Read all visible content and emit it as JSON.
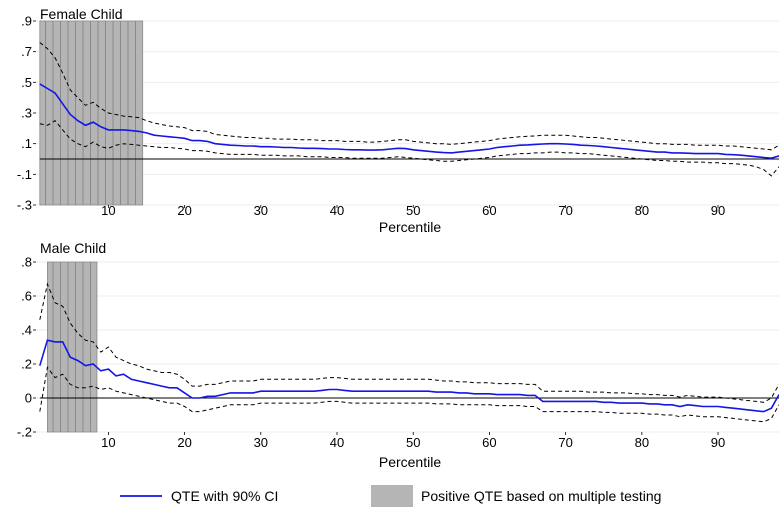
{
  "colors": {
    "qte_line": "#1515e6",
    "ci_line": "#000000",
    "shade_fill": "#b5b5b5",
    "shade_lines": "#888888",
    "grid": "#eeeeee",
    "zero_line": "#000000"
  },
  "legend": {
    "qte_label": "QTE with 90% CI",
    "shade_label": "Positive QTE based on multiple testing"
  },
  "chart_data": [
    {
      "type": "line",
      "title": "Female Child",
      "xlabel": "Percentile",
      "ylabel": "",
      "xlim": [
        0.5,
        98
      ],
      "ylim": [
        -0.3,
        0.9
      ],
      "y_ticks": [
        -0.3,
        -0.1,
        0.1,
        0.3,
        0.5,
        0.7,
        0.9
      ],
      "y_tick_labels": [
        "-.3",
        "-.1",
        ".1",
        ".3",
        ".5",
        ".7",
        ".9"
      ],
      "x_ticks": [
        10,
        20,
        30,
        40,
        50,
        60,
        70,
        80,
        90
      ],
      "x_tick_labels": [
        "10",
        "20",
        "30",
        "40",
        "50",
        "60",
        "70",
        "80",
        "90"
      ],
      "zero_line": 0,
      "shaded_region": [
        1,
        14.5
      ],
      "x": [
        1,
        2,
        3,
        4,
        5,
        6,
        7,
        8,
        9,
        10,
        11,
        12,
        13,
        14,
        15,
        16,
        17,
        18,
        19,
        20,
        21,
        22,
        23,
        24,
        25,
        26,
        27,
        28,
        29,
        30,
        31,
        32,
        33,
        34,
        35,
        36,
        37,
        38,
        39,
        40,
        41,
        42,
        43,
        44,
        45,
        46,
        47,
        48,
        49,
        50,
        51,
        52,
        53,
        54,
        55,
        56,
        57,
        58,
        59,
        60,
        61,
        62,
        63,
        64,
        65,
        66,
        67,
        68,
        69,
        70,
        71,
        72,
        73,
        74,
        75,
        76,
        77,
        78,
        79,
        80,
        81,
        82,
        83,
        84,
        85,
        86,
        87,
        88,
        89,
        90,
        91,
        92,
        93,
        94,
        95,
        96,
        97,
        98
      ],
      "series": [
        {
          "role": "estimate",
          "values": [
            0.49,
            0.46,
            0.43,
            0.36,
            0.29,
            0.25,
            0.22,
            0.24,
            0.21,
            0.19,
            0.19,
            0.19,
            0.185,
            0.18,
            0.17,
            0.155,
            0.15,
            0.145,
            0.14,
            0.135,
            0.12,
            0.12,
            0.115,
            0.1,
            0.095,
            0.09,
            0.088,
            0.085,
            0.085,
            0.08,
            0.08,
            0.078,
            0.075,
            0.075,
            0.072,
            0.07,
            0.07,
            0.068,
            0.065,
            0.065,
            0.062,
            0.06,
            0.06,
            0.058,
            0.058,
            0.06,
            0.065,
            0.07,
            0.068,
            0.06,
            0.055,
            0.05,
            0.045,
            0.042,
            0.04,
            0.045,
            0.05,
            0.055,
            0.06,
            0.065,
            0.075,
            0.08,
            0.085,
            0.09,
            0.092,
            0.095,
            0.098,
            0.1,
            0.1,
            0.098,
            0.095,
            0.09,
            0.088,
            0.085,
            0.08,
            0.075,
            0.07,
            0.065,
            0.06,
            0.055,
            0.05,
            0.045,
            0.045,
            0.04,
            0.04,
            0.038,
            0.035,
            0.035,
            0.035,
            0.035,
            0.03,
            0.028,
            0.025,
            0.02,
            0.015,
            0.01,
            0.005,
            0.02
          ]
        },
        {
          "role": "ci_upper",
          "values": [
            0.76,
            0.72,
            0.66,
            0.56,
            0.45,
            0.4,
            0.35,
            0.37,
            0.33,
            0.3,
            0.29,
            0.28,
            0.275,
            0.27,
            0.25,
            0.235,
            0.225,
            0.215,
            0.21,
            0.205,
            0.185,
            0.185,
            0.18,
            0.16,
            0.155,
            0.15,
            0.145,
            0.14,
            0.14,
            0.135,
            0.135,
            0.13,
            0.13,
            0.13,
            0.125,
            0.125,
            0.125,
            0.12,
            0.12,
            0.12,
            0.115,
            0.115,
            0.115,
            0.11,
            0.11,
            0.115,
            0.12,
            0.125,
            0.125,
            0.115,
            0.11,
            0.105,
            0.1,
            0.1,
            0.095,
            0.1,
            0.105,
            0.11,
            0.115,
            0.12,
            0.13,
            0.135,
            0.14,
            0.145,
            0.148,
            0.15,
            0.155,
            0.155,
            0.155,
            0.155,
            0.15,
            0.145,
            0.14,
            0.14,
            0.135,
            0.13,
            0.125,
            0.12,
            0.115,
            0.11,
            0.105,
            0.1,
            0.1,
            0.095,
            0.095,
            0.095,
            0.09,
            0.09,
            0.09,
            0.09,
            0.085,
            0.085,
            0.08,
            0.075,
            0.07,
            0.065,
            0.06,
            0.09
          ]
        },
        {
          "role": "ci_lower",
          "values": [
            0.23,
            0.22,
            0.25,
            0.19,
            0.13,
            0.1,
            0.08,
            0.11,
            0.08,
            0.07,
            0.09,
            0.1,
            0.095,
            0.09,
            0.085,
            0.08,
            0.075,
            0.075,
            0.07,
            0.065,
            0.055,
            0.055,
            0.05,
            0.04,
            0.035,
            0.03,
            0.03,
            0.03,
            0.03,
            0.025,
            0.025,
            0.025,
            0.02,
            0.02,
            0.02,
            0.015,
            0.015,
            0.015,
            0.01,
            0.01,
            0.01,
            0.005,
            0.005,
            0.005,
            0.005,
            0.005,
            0.01,
            0.015,
            0.01,
            0.005,
            0.0,
            -0.005,
            -0.01,
            -0.015,
            -0.015,
            -0.01,
            -0.005,
            0.0,
            0.005,
            0.01,
            0.02,
            0.025,
            0.03,
            0.035,
            0.035,
            0.04,
            0.04,
            0.045,
            0.045,
            0.04,
            0.04,
            0.035,
            0.035,
            0.03,
            0.025,
            0.02,
            0.015,
            0.01,
            0.005,
            0.0,
            -0.005,
            -0.01,
            -0.01,
            -0.015,
            -0.015,
            -0.02,
            -0.02,
            -0.02,
            -0.025,
            -0.025,
            -0.03,
            -0.03,
            -0.035,
            -0.04,
            -0.05,
            -0.07,
            -0.11,
            -0.05
          ]
        }
      ]
    },
    {
      "type": "line",
      "title": "Male Child",
      "xlabel": "Percentile",
      "ylabel": "",
      "xlim": [
        0.5,
        98
      ],
      "ylim": [
        -0.2,
        0.8
      ],
      "y_ticks": [
        -0.2,
        0,
        0.2,
        0.4,
        0.6,
        0.8
      ],
      "y_tick_labels": [
        "-.2",
        "0",
        ".2",
        ".4",
        ".6",
        ".8"
      ],
      "x_ticks": [
        10,
        20,
        30,
        40,
        50,
        60,
        70,
        80,
        90
      ],
      "x_tick_labels": [
        "10",
        "20",
        "30",
        "40",
        "50",
        "60",
        "70",
        "80",
        "90"
      ],
      "zero_line": 0,
      "shaded_region": [
        2,
        8.5
      ],
      "x": [
        1,
        2,
        3,
        4,
        5,
        6,
        7,
        8,
        9,
        10,
        11,
        12,
        13,
        14,
        15,
        16,
        17,
        18,
        19,
        20,
        21,
        22,
        23,
        24,
        25,
        26,
        27,
        28,
        29,
        30,
        31,
        32,
        33,
        34,
        35,
        36,
        37,
        38,
        39,
        40,
        41,
        42,
        43,
        44,
        45,
        46,
        47,
        48,
        49,
        50,
        51,
        52,
        53,
        54,
        55,
        56,
        57,
        58,
        59,
        60,
        61,
        62,
        63,
        64,
        65,
        66,
        67,
        68,
        69,
        70,
        71,
        72,
        73,
        74,
        75,
        76,
        77,
        78,
        79,
        80,
        81,
        82,
        83,
        84,
        85,
        86,
        87,
        88,
        89,
        90,
        91,
        92,
        93,
        94,
        95,
        96,
        97,
        98
      ],
      "series": [
        {
          "role": "estimate",
          "values": [
            0.19,
            0.34,
            0.33,
            0.33,
            0.24,
            0.22,
            0.19,
            0.2,
            0.16,
            0.17,
            0.13,
            0.14,
            0.11,
            0.1,
            0.09,
            0.08,
            0.07,
            0.06,
            0.06,
            0.03,
            0.0,
            0.0,
            0.01,
            0.01,
            0.02,
            0.03,
            0.03,
            0.03,
            0.03,
            0.04,
            0.04,
            0.04,
            0.04,
            0.04,
            0.04,
            0.04,
            0.04,
            0.045,
            0.05,
            0.05,
            0.045,
            0.04,
            0.04,
            0.04,
            0.04,
            0.04,
            0.04,
            0.04,
            0.04,
            0.04,
            0.04,
            0.04,
            0.035,
            0.035,
            0.035,
            0.03,
            0.03,
            0.025,
            0.025,
            0.025,
            0.02,
            0.02,
            0.02,
            0.02,
            0.015,
            0.015,
            -0.02,
            -0.02,
            -0.02,
            -0.02,
            -0.02,
            -0.02,
            -0.02,
            -0.02,
            -0.025,
            -0.025,
            -0.03,
            -0.03,
            -0.03,
            -0.03,
            -0.035,
            -0.035,
            -0.04,
            -0.04,
            -0.05,
            -0.04,
            -0.045,
            -0.05,
            -0.05,
            -0.05,
            -0.055,
            -0.06,
            -0.065,
            -0.07,
            -0.075,
            -0.08,
            -0.06,
            0.02
          ]
        },
        {
          "role": "ci_upper",
          "values": [
            0.46,
            0.67,
            0.56,
            0.54,
            0.44,
            0.38,
            0.34,
            0.33,
            0.27,
            0.3,
            0.24,
            0.22,
            0.2,
            0.19,
            0.17,
            0.16,
            0.15,
            0.15,
            0.14,
            0.11,
            0.07,
            0.07,
            0.08,
            0.08,
            0.09,
            0.1,
            0.1,
            0.1,
            0.1,
            0.11,
            0.11,
            0.11,
            0.11,
            0.11,
            0.11,
            0.11,
            0.11,
            0.115,
            0.12,
            0.12,
            0.115,
            0.11,
            0.11,
            0.11,
            0.11,
            0.11,
            0.11,
            0.11,
            0.11,
            0.11,
            0.11,
            0.11,
            0.105,
            0.1,
            0.1,
            0.095,
            0.095,
            0.09,
            0.09,
            0.09,
            0.085,
            0.085,
            0.085,
            0.085,
            0.08,
            0.08,
            0.04,
            0.04,
            0.04,
            0.04,
            0.04,
            0.04,
            0.035,
            0.035,
            0.035,
            0.03,
            0.03,
            0.03,
            0.025,
            0.025,
            0.02,
            0.02,
            0.015,
            0.015,
            0.005,
            0.015,
            0.01,
            0.005,
            0.005,
            0.005,
            0.0,
            -0.005,
            -0.01,
            -0.015,
            -0.02,
            -0.025,
            0.0,
            0.08
          ]
        },
        {
          "role": "ci_lower",
          "values": [
            -0.08,
            0.18,
            0.12,
            0.14,
            0.08,
            0.06,
            0.06,
            0.07,
            0.05,
            0.06,
            0.04,
            0.03,
            0.02,
            0.01,
            0.0,
            -0.01,
            -0.02,
            -0.03,
            -0.03,
            -0.05,
            -0.08,
            -0.08,
            -0.07,
            -0.06,
            -0.05,
            -0.04,
            -0.04,
            -0.04,
            -0.04,
            -0.03,
            -0.03,
            -0.03,
            -0.03,
            -0.03,
            -0.03,
            -0.03,
            -0.03,
            -0.025,
            -0.02,
            -0.02,
            -0.025,
            -0.03,
            -0.03,
            -0.03,
            -0.03,
            -0.03,
            -0.03,
            -0.03,
            -0.03,
            -0.03,
            -0.03,
            -0.03,
            -0.035,
            -0.035,
            -0.035,
            -0.04,
            -0.04,
            -0.04,
            -0.04,
            -0.04,
            -0.045,
            -0.045,
            -0.045,
            -0.045,
            -0.05,
            -0.05,
            -0.08,
            -0.08,
            -0.08,
            -0.08,
            -0.08,
            -0.08,
            -0.08,
            -0.08,
            -0.085,
            -0.085,
            -0.09,
            -0.09,
            -0.09,
            -0.09,
            -0.095,
            -0.095,
            -0.1,
            -0.1,
            -0.11,
            -0.1,
            -0.105,
            -0.11,
            -0.11,
            -0.11,
            -0.115,
            -0.12,
            -0.125,
            -0.13,
            -0.135,
            -0.14,
            -0.12,
            -0.04
          ]
        }
      ]
    }
  ]
}
